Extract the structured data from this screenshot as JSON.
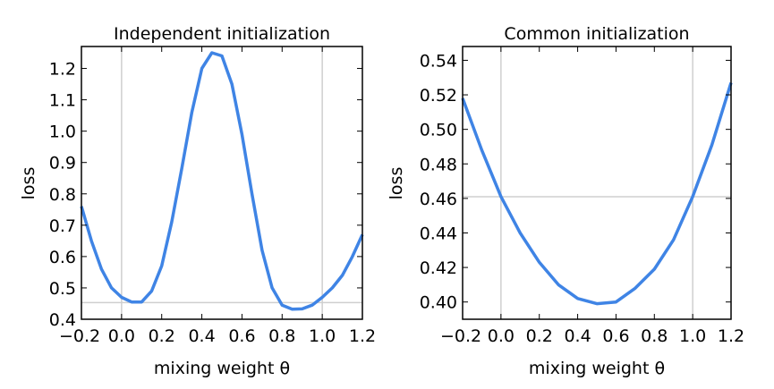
{
  "chart_data": [
    {
      "type": "line",
      "title": "Independent initialization",
      "xlabel": "mixing weight θ",
      "ylabel": "loss",
      "xlim": [
        -0.2,
        1.2
      ],
      "ylim": [
        0.4,
        1.27
      ],
      "xticks": [
        -0.2,
        0.0,
        0.2,
        0.4,
        0.6,
        0.8,
        1.0,
        1.2
      ],
      "xtick_labels": [
        "−0.2",
        "0.0",
        "0.2",
        "0.4",
        "0.6",
        "0.8",
        "1.0",
        "1.2"
      ],
      "yticks": [
        0.4,
        0.5,
        0.6,
        0.7,
        0.8,
        0.9,
        1.0,
        1.1,
        1.2
      ],
      "ytick_labels": [
        "0.4",
        "0.5",
        "0.6",
        "0.7",
        "0.8",
        "0.9",
        "1.0",
        "1.1",
        "1.2"
      ],
      "vlines": [
        0.0,
        1.0
      ],
      "hlines": [
        0.453
      ],
      "series": [
        {
          "name": "loss",
          "color": "#3f84e5",
          "x": [
            -0.2,
            -0.15,
            -0.1,
            -0.05,
            0.0,
            0.05,
            0.1,
            0.15,
            0.2,
            0.25,
            0.3,
            0.35,
            0.4,
            0.45,
            0.5,
            0.55,
            0.6,
            0.65,
            0.7,
            0.75,
            0.8,
            0.85,
            0.9,
            0.95,
            1.0,
            1.05,
            1.1,
            1.15,
            1.2
          ],
          "y": [
            0.76,
            0.65,
            0.56,
            0.5,
            0.47,
            0.455,
            0.455,
            0.49,
            0.57,
            0.71,
            0.88,
            1.06,
            1.2,
            1.25,
            1.24,
            1.15,
            0.99,
            0.8,
            0.62,
            0.5,
            0.445,
            0.432,
            0.433,
            0.445,
            0.47,
            0.5,
            0.54,
            0.6,
            0.67
          ]
        }
      ]
    },
    {
      "type": "line",
      "title": "Common initialization",
      "xlabel": "mixing weight θ",
      "ylabel": "loss",
      "xlim": [
        -0.2,
        1.2
      ],
      "ylim": [
        0.39,
        0.548
      ],
      "xticks": [
        -0.2,
        0.0,
        0.2,
        0.4,
        0.6,
        0.8,
        1.0,
        1.2
      ],
      "xtick_labels": [
        "−0.2",
        "0.0",
        "0.2",
        "0.4",
        "0.6",
        "0.8",
        "1.0",
        "1.2"
      ],
      "yticks": [
        0.4,
        0.42,
        0.44,
        0.46,
        0.48,
        0.5,
        0.52,
        0.54
      ],
      "ytick_labels": [
        "0.40",
        "0.42",
        "0.44",
        "0.46",
        "0.48",
        "0.50",
        "0.52",
        "0.54"
      ],
      "vlines": [
        0.0,
        1.0
      ],
      "hlines": [
        0.461
      ],
      "series": [
        {
          "name": "loss",
          "color": "#3f84e5",
          "x": [
            -0.2,
            -0.1,
            0.0,
            0.1,
            0.2,
            0.3,
            0.4,
            0.5,
            0.6,
            0.7,
            0.8,
            0.9,
            1.0,
            1.1,
            1.2
          ],
          "y": [
            0.518,
            0.488,
            0.461,
            0.44,
            0.423,
            0.41,
            0.402,
            0.399,
            0.4,
            0.408,
            0.419,
            0.436,
            0.461,
            0.491,
            0.527
          ]
        }
      ]
    }
  ]
}
